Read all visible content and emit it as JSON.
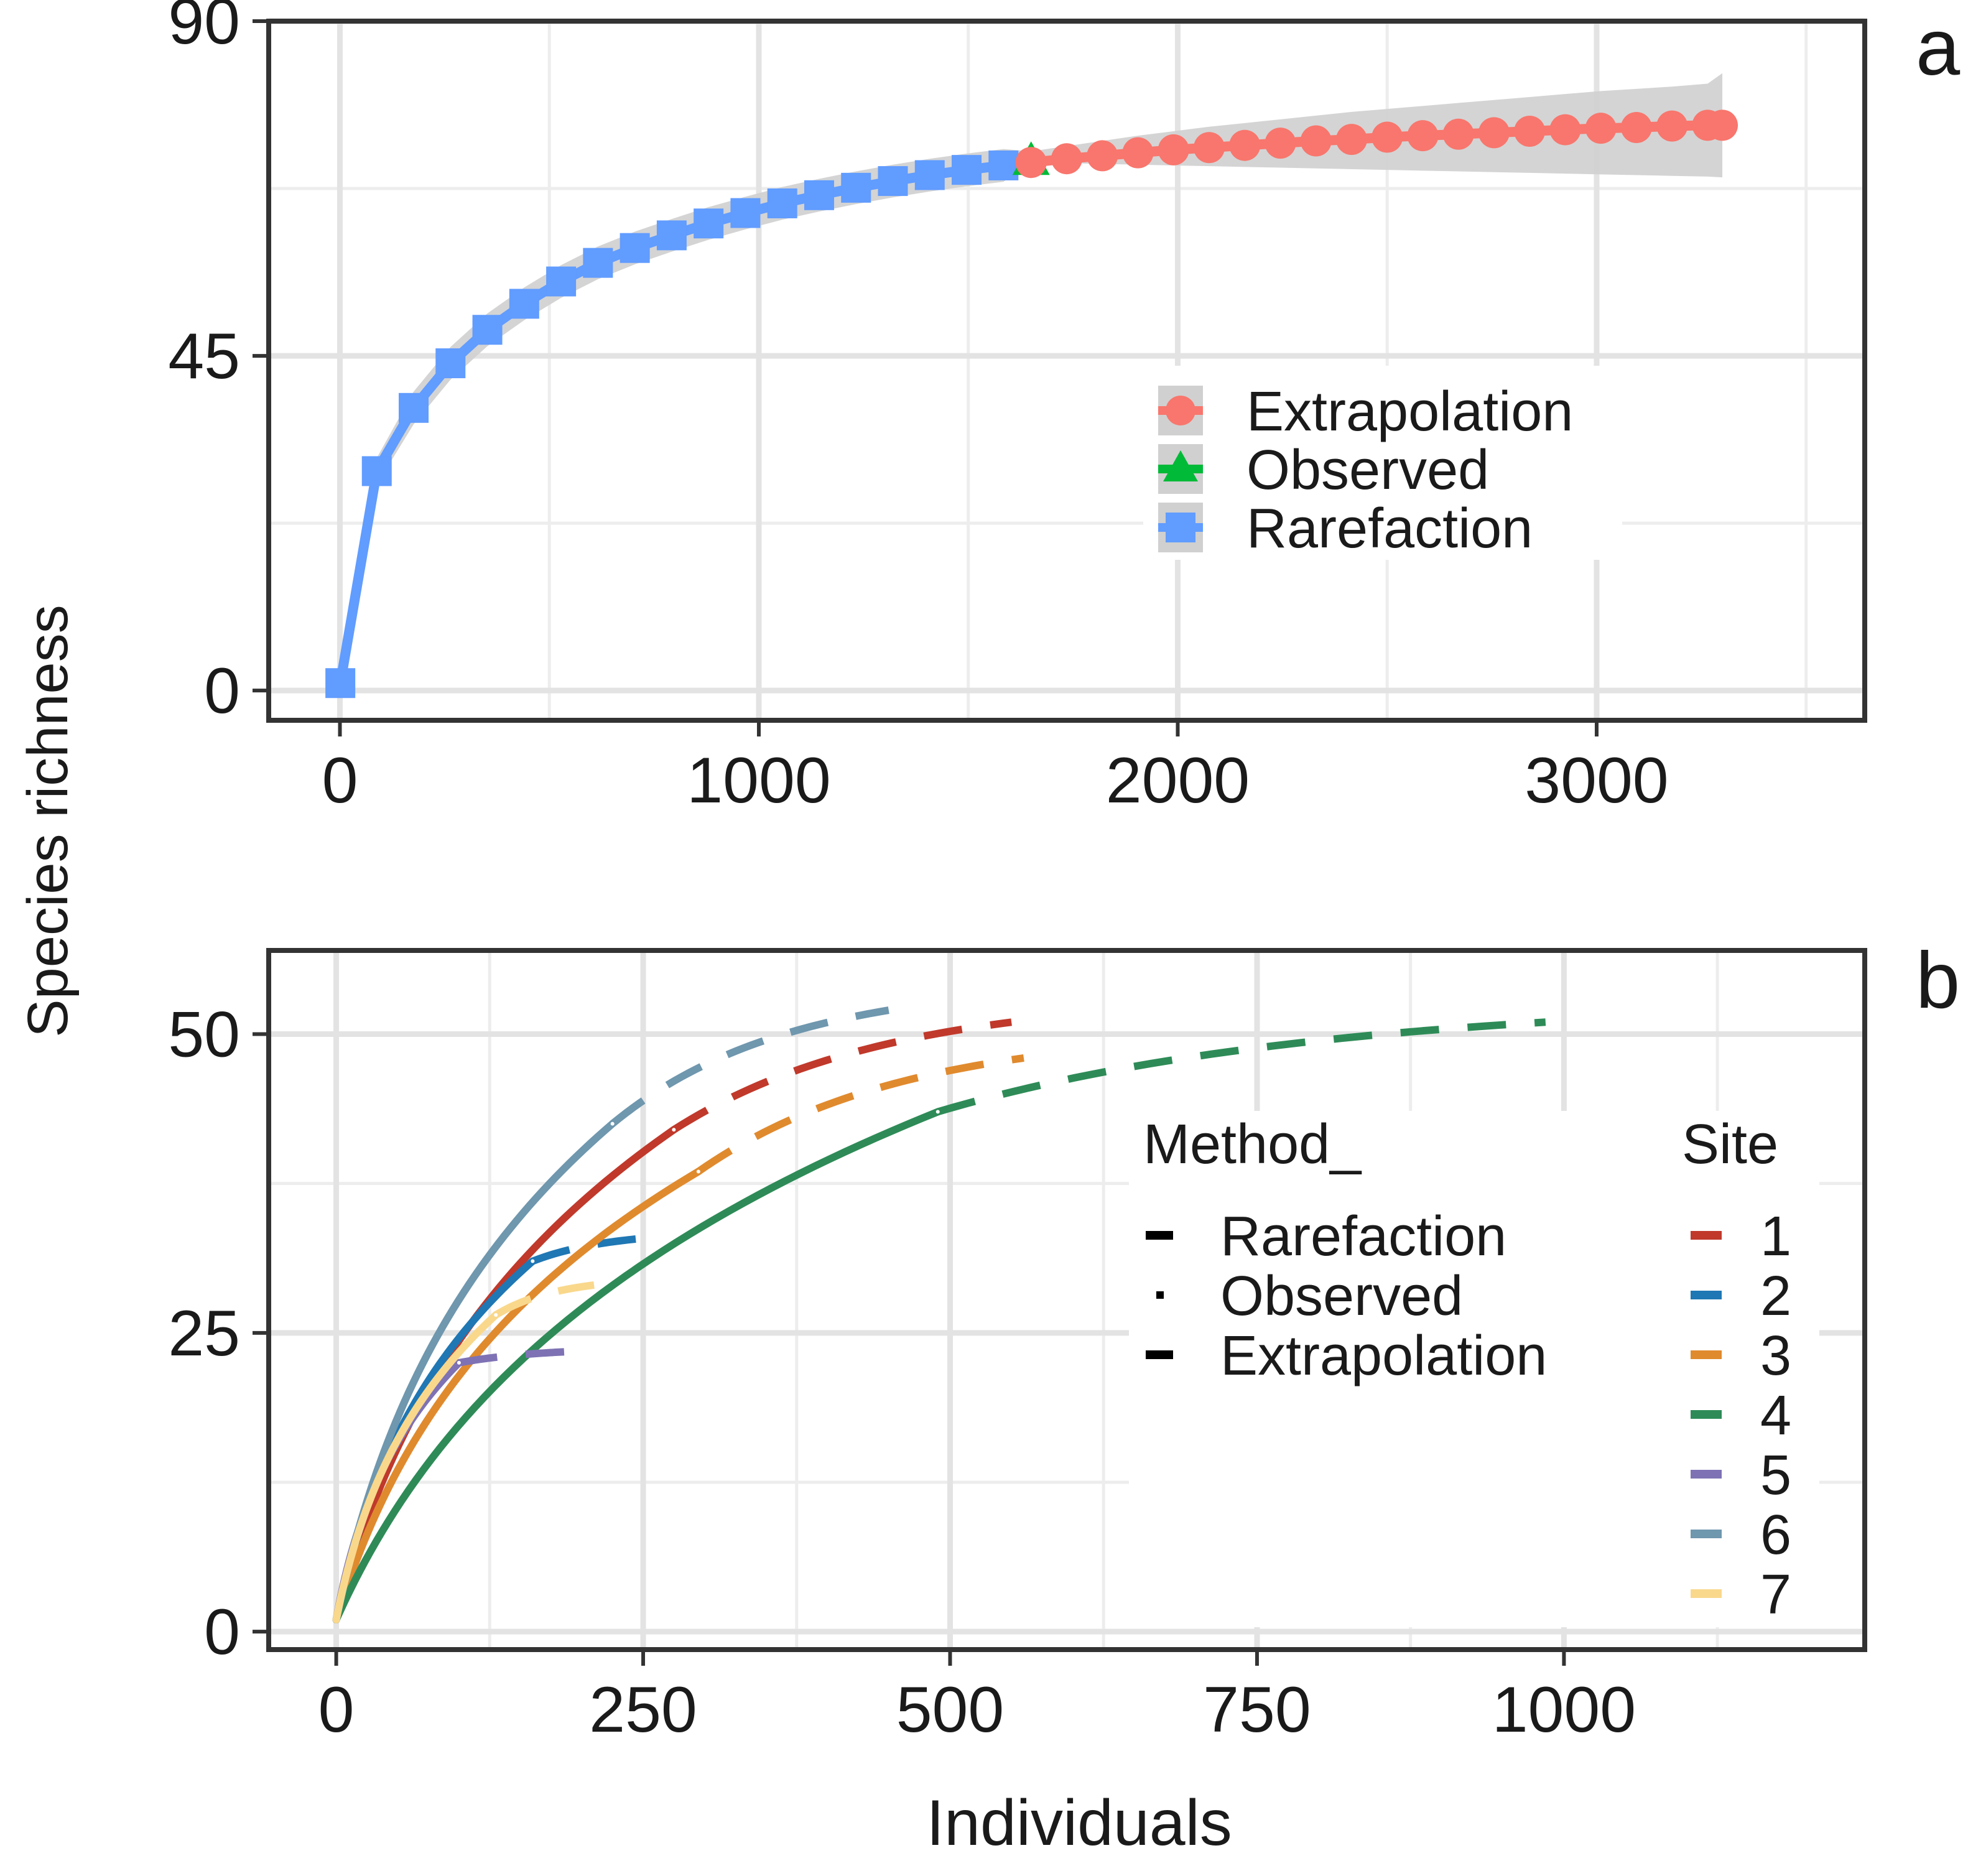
{
  "y_axis_label": "Species richness",
  "x_axis_label": "Individuals",
  "chart_data": [
    {
      "panel": "a",
      "type": "line",
      "xlim": [
        -170,
        3640
      ],
      "ylim": [
        -4,
        90
      ],
      "xticks": [
        0,
        1000,
        2000,
        3000
      ],
      "yticks": [
        0,
        45,
        90
      ],
      "grid": true,
      "legend_position": "center-right",
      "series": [
        {
          "name": "Rarefaction",
          "marker": "square",
          "color": "#619CFF",
          "x": [
            1,
            88,
            176,
            264,
            352,
            440,
            528,
            616,
            704,
            792,
            880,
            968,
            1056,
            1144,
            1232,
            1320,
            1408,
            1496,
            1584
          ],
          "y": [
            1,
            29.5,
            38,
            44,
            48.5,
            52,
            55,
            57.5,
            59.5,
            61.2,
            62.8,
            64.2,
            65.5,
            66.6,
            67.6,
            68.5,
            69.3,
            70.0,
            70.6
          ]
        },
        {
          "name": "Observed",
          "marker": "triangle",
          "color": "#00BA38",
          "x": [
            1650
          ],
          "y": [
            71
          ]
        },
        {
          "name": "Extrapolation",
          "marker": "circle",
          "color": "#F8766D",
          "x": [
            1650,
            1735,
            1820,
            1905,
            1990,
            2075,
            2160,
            2245,
            2330,
            2415,
            2500,
            2585,
            2670,
            2755,
            2840,
            2925,
            3010,
            3095,
            3180,
            3265,
            3300
          ],
          "y": [
            71,
            71.5,
            71.9,
            72.3,
            72.7,
            73.0,
            73.3,
            73.6,
            73.9,
            74.1,
            74.4,
            74.6,
            74.8,
            75.0,
            75.2,
            75.4,
            75.6,
            75.7,
            75.9,
            76.0,
            76.0
          ],
          "ci_lower": [
            71,
            70.9,
            70.8,
            70.7,
            70.6,
            70.5,
            70.4,
            70.3,
            70.2,
            70.1,
            70.0,
            69.9,
            69.8,
            69.7,
            69.6,
            69.5,
            69.4,
            69.3,
            69.2,
            69.1,
            69.0
          ],
          "ci_upper": [
            72.5,
            73.2,
            73.9,
            74.6,
            75.2,
            75.8,
            76.3,
            76.8,
            77.3,
            77.8,
            78.2,
            78.6,
            79.0,
            79.4,
            79.8,
            80.2,
            80.6,
            80.9,
            81.2,
            81.6,
            83.0
          ]
        }
      ],
      "legend": [
        {
          "label": "Extrapolation",
          "marker": "circle",
          "color": "#F8766D"
        },
        {
          "label": "Observed",
          "marker": "triangle",
          "color": "#00BA38"
        },
        {
          "label": "Rarefaction",
          "marker": "square",
          "color": "#619CFF"
        }
      ]
    },
    {
      "panel": "b",
      "type": "line",
      "xlim": [
        -55,
        1245
      ],
      "ylim": [
        -1.5,
        57
      ],
      "xticks": [
        0,
        250,
        500,
        750,
        1000
      ],
      "yticks": [
        0,
        25,
        50
      ],
      "grid": true,
      "legend_position": "center-right",
      "method_legend": {
        "title": "Method_",
        "items": [
          {
            "label": "Rarefaction",
            "style": "solid"
          },
          {
            "label": "Observed",
            "style": "dotted"
          },
          {
            "label": "Extrapolation",
            "style": "dashed"
          }
        ]
      },
      "site_legend": {
        "title": "Site",
        "items": [
          {
            "label": "1",
            "color": "#C0392B"
          },
          {
            "label": "2",
            "color": "#1F77B4"
          },
          {
            "label": "3",
            "color": "#E08A2E"
          },
          {
            "label": "4",
            "color": "#2E8B57"
          },
          {
            "label": "5",
            "color": "#7E72B4"
          },
          {
            "label": "6",
            "color": "#6F97AE"
          },
          {
            "label": "7",
            "color": "#F9D88C"
          }
        ]
      },
      "series": [
        {
          "name": "1",
          "color": "#C0392B",
          "observed_n": 275,
          "observed_s": 42,
          "end_n": 550,
          "end_s": 51
        },
        {
          "name": "2",
          "color": "#1F77B4",
          "observed_n": 160,
          "observed_s": 31,
          "end_n": 260,
          "end_s": 33
        },
        {
          "name": "3",
          "color": "#E08A2E",
          "observed_n": 295,
          "observed_s": 38.5,
          "end_n": 560,
          "end_s": 48
        },
        {
          "name": "4",
          "color": "#2E8B57",
          "observed_n": 490,
          "observed_s": 43.5,
          "end_n": 985,
          "end_s": 51
        },
        {
          "name": "5",
          "color": "#7E72B4",
          "observed_n": 100,
          "observed_s": 22.5,
          "end_n": 205,
          "end_s": 23.5
        },
        {
          "name": "6",
          "color": "#6F97AE",
          "observed_n": 225,
          "observed_s": 42.5,
          "end_n": 450,
          "end_s": 52
        },
        {
          "name": "7",
          "color": "#F9D88C",
          "observed_n": 130,
          "observed_s": 26.5,
          "end_n": 210,
          "end_s": 29
        }
      ]
    }
  ],
  "panel_labels": {
    "a": "a",
    "b": "b"
  }
}
